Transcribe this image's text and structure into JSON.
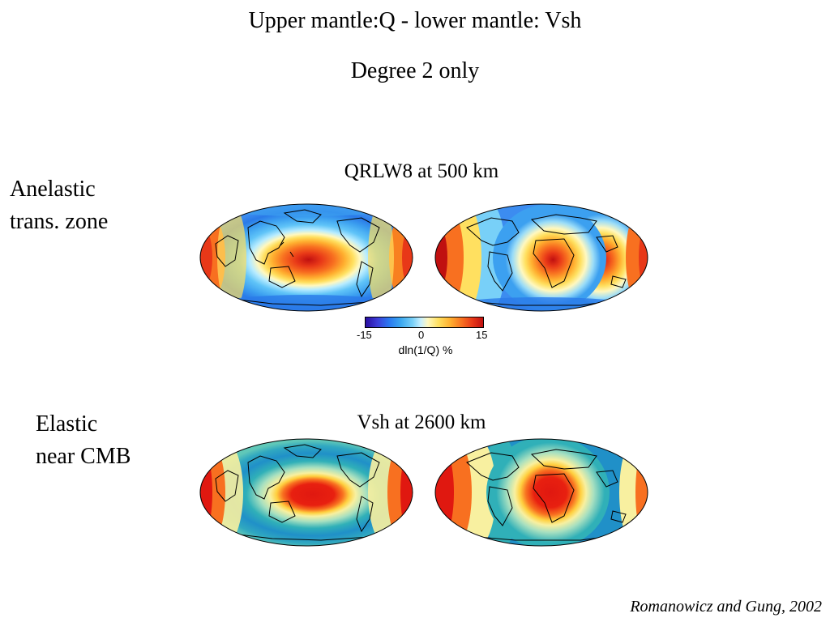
{
  "slide": {
    "title": "Upper mantle:Q - lower mantle: Vsh",
    "subtitle": "Degree 2 only"
  },
  "panels": [
    {
      "side_label_line1": "Anelastic",
      "side_label_line2": "trans. zone",
      "map_title": "QRLW8 at 500 km",
      "colorbar": {
        "ticks": [
          "-15",
          "0",
          "15"
        ],
        "label": "dln(1/Q) %"
      }
    },
    {
      "side_label_line1": "Elastic",
      "side_label_line2": "near CMB",
      "map_title": "Vsh at 2600 km"
    }
  ],
  "citation": "Romanowicz and Gung, 2002"
}
